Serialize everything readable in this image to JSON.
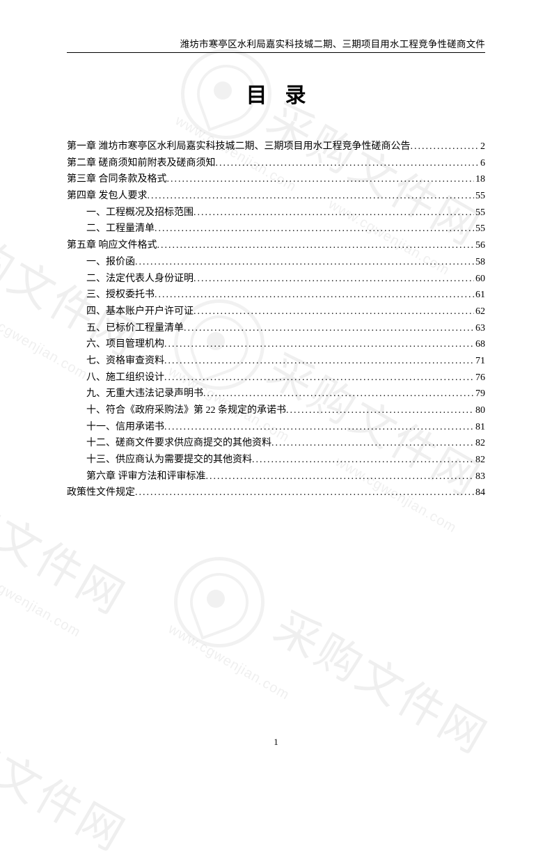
{
  "header": "潍坊市寒亭区水利局嘉实科技城二期、三期项目用水工程竞争性磋商文件",
  "title": "目录",
  "page_number": "1",
  "watermark": {
    "text": "采购文件网",
    "url": "www.cgwenjian.com",
    "color": "#000000",
    "opacity": 0.06,
    "rotate_deg": 30
  },
  "toc": [
    {
      "label": "第一章  潍坊市寒亭区水利局嘉实科技城二期、三期项目用水工程竞争性磋商公告",
      "page": "2",
      "indent": false
    },
    {
      "label": "第二章  磋商须知前附表及磋商须知",
      "page": "6",
      "indent": false
    },
    {
      "label": "第三章  合同条款及格式",
      "page": "18",
      "indent": false
    },
    {
      "label": "第四章  发包人要求",
      "page": "55",
      "indent": false
    },
    {
      "label": "一、工程概况及招标范围",
      "page": "55",
      "indent": true
    },
    {
      "label": "二、工程量清单",
      "page": "55",
      "indent": true
    },
    {
      "label": "第五章  响应文件格式",
      "page": "56",
      "indent": false
    },
    {
      "label": "一、报价函",
      "page": "58",
      "indent": true
    },
    {
      "label": "二、法定代表人身份证明",
      "page": "60",
      "indent": true
    },
    {
      "label": "三、授权委托书",
      "page": "61",
      "indent": true
    },
    {
      "label": "四、基本账户开户许可证",
      "page": "62",
      "indent": true
    },
    {
      "label": "五、已标价工程量清单",
      "page": "63",
      "indent": true
    },
    {
      "label": "六、项目管理机构",
      "page": "68",
      "indent": true
    },
    {
      "label": "七、资格审查资料",
      "page": "71",
      "indent": true
    },
    {
      "label": "八、施工组织设计",
      "page": "76",
      "indent": true
    },
    {
      "label": "九、无重大违法记录声明书",
      "page": "79",
      "indent": true
    },
    {
      "label": "十、符合《政府采购法》第 22 条规定的承诺书",
      "page": "80",
      "indent": true
    },
    {
      "label": "十一、信用承诺书",
      "page": "81",
      "indent": true
    },
    {
      "label": "十二、磋商文件要求供应商提交的其他资料",
      "page": "82",
      "indent": true
    },
    {
      "label": "十三、供应商认为需要提交的其他资料",
      "page": "82",
      "indent": true
    },
    {
      "label": "第六章  评审方法和评审标准",
      "page": "83",
      "indent": true
    },
    {
      "label": "政策性文件规定",
      "page": "84",
      "indent": false
    }
  ]
}
